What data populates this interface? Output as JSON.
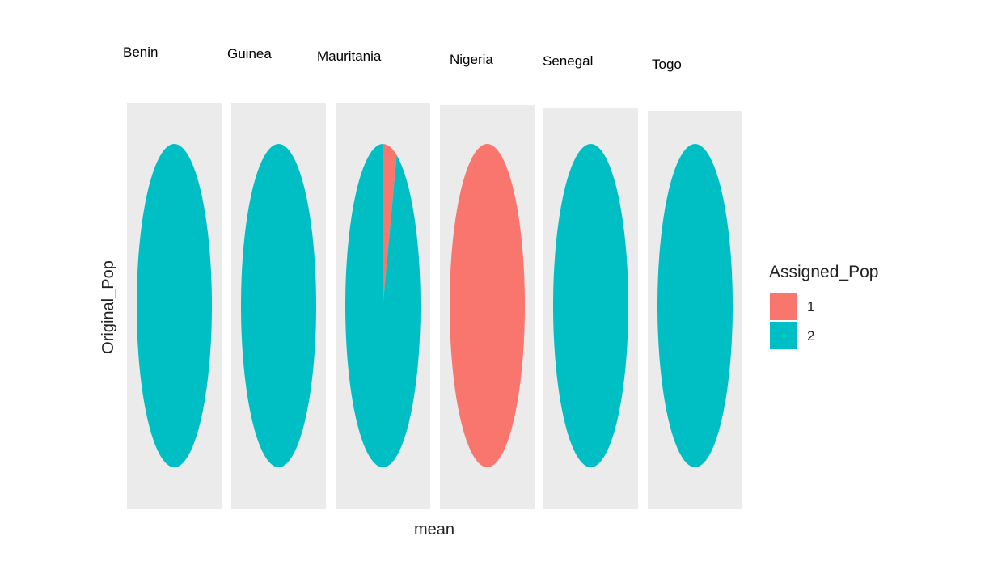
{
  "chart_data": {
    "type": "pie",
    "facet_by": "Original_Pop",
    "facets": [
      {
        "label": "Benin",
        "values": [
          {
            "group": "1",
            "share": 0.0
          },
          {
            "group": "2",
            "share": 1.0
          }
        ]
      },
      {
        "label": "Guinea",
        "values": [
          {
            "group": "1",
            "share": 0.0
          },
          {
            "group": "2",
            "share": 1.0
          }
        ]
      },
      {
        "label": "Mauritania",
        "values": [
          {
            "group": "1",
            "share": 0.06
          },
          {
            "group": "2",
            "share": 0.94
          }
        ]
      },
      {
        "label": "Nigeria",
        "values": [
          {
            "group": "1",
            "share": 1.0
          },
          {
            "group": "2",
            "share": 0.0
          }
        ]
      },
      {
        "label": "Senegal",
        "values": [
          {
            "group": "1",
            "share": 0.0
          },
          {
            "group": "2",
            "share": 1.0
          }
        ]
      },
      {
        "label": "Togo",
        "values": [
          {
            "group": "1",
            "share": 0.0
          },
          {
            "group": "2",
            "share": 1.0
          }
        ]
      }
    ],
    "xlabel": "mean",
    "ylabel": "Original_Pop",
    "legend": {
      "title": "Assigned_Pop",
      "placement": "right",
      "items": [
        {
          "label": "1",
          "color": "#F8766D"
        },
        {
          "label": "2",
          "color": "#00BFC4"
        }
      ]
    },
    "panel_background": "#EBEBEB"
  }
}
